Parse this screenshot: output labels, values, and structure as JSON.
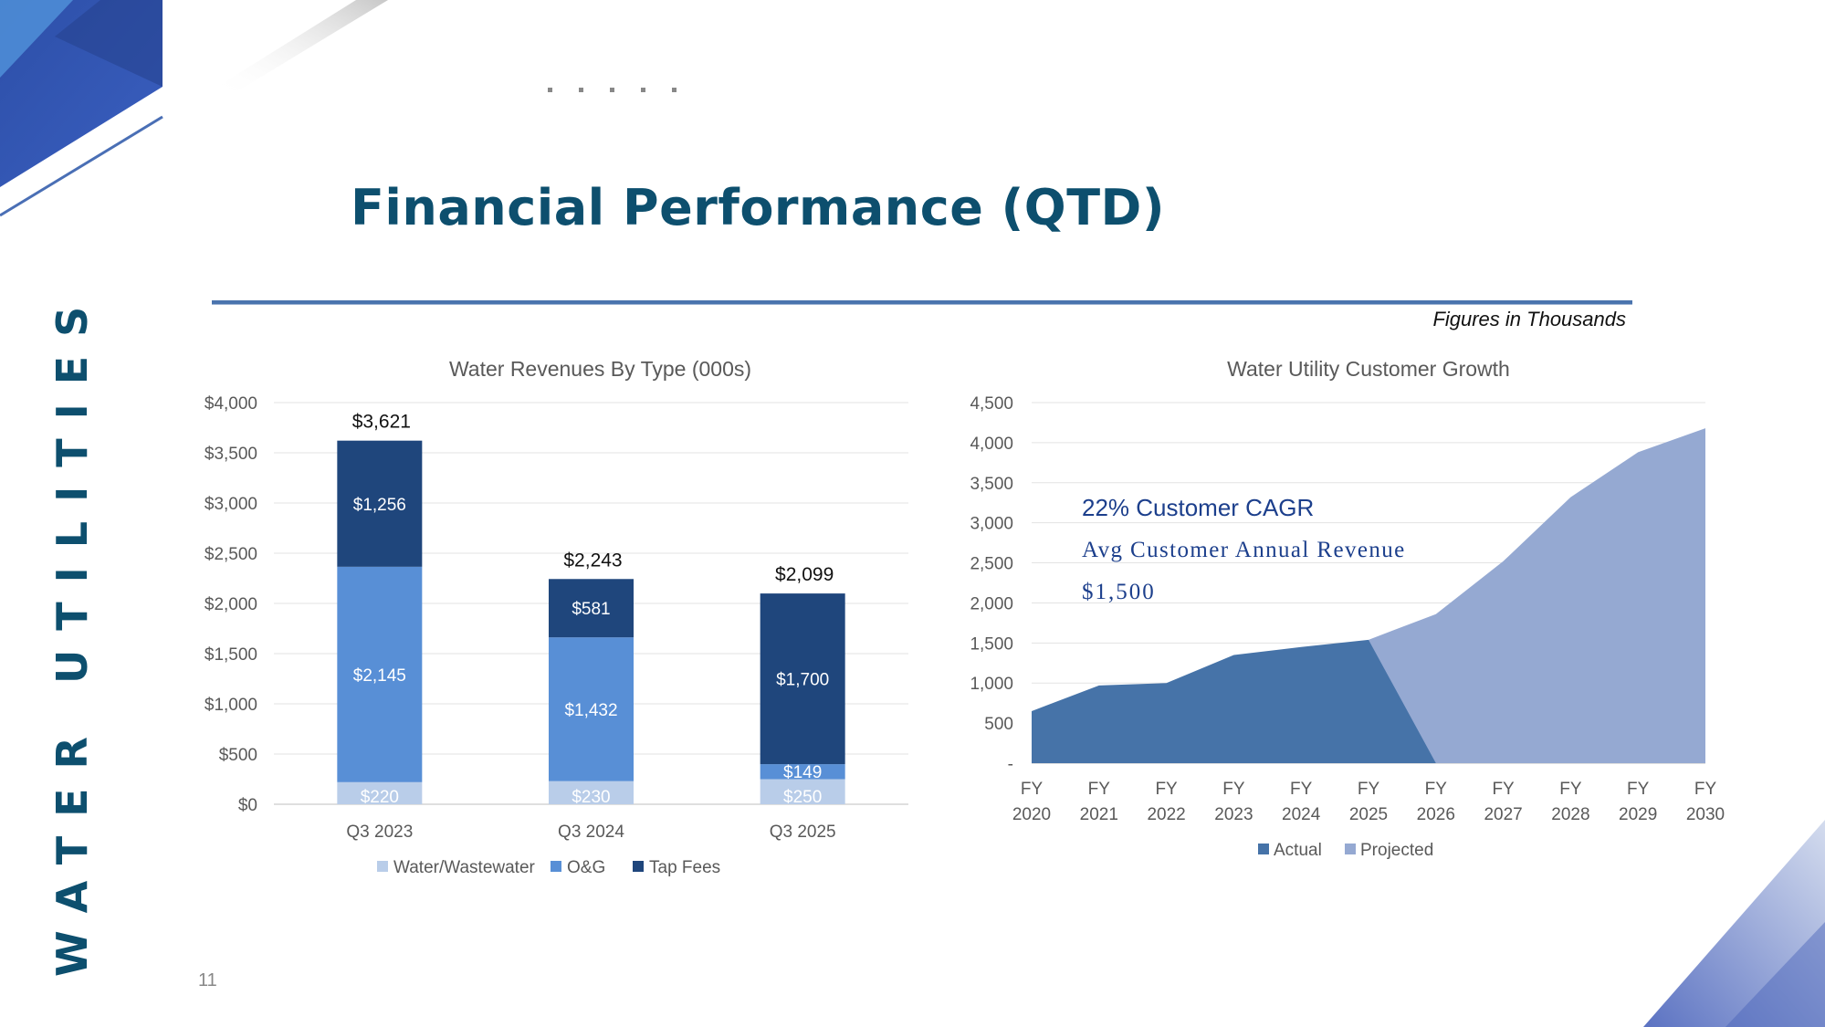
{
  "page": {
    "title": "Financial Performance (QTD)",
    "side_label": "WATER UTILITIES",
    "figures_note": "Figures in Thousands",
    "page_number": "11"
  },
  "colors": {
    "title": "#0d4f6e",
    "rule": "#4a74ae",
    "water_wastewater": "#b9cde9",
    "og": "#588fd6",
    "tap_fees": "#1f467c",
    "actual": "#4673a8",
    "projected": "#95a9d2",
    "callout": "#1c3f8c"
  },
  "callouts": {
    "cagr": "22% Customer CAGR",
    "avg_revenue_label": "Avg Customer Annual Revenue",
    "avg_revenue_value": "$1,500"
  },
  "chart_data": [
    {
      "type": "bar",
      "stacked": true,
      "title": "Water Revenues By Type (000s)",
      "categories": [
        "Q3 2023",
        "Q3 2024",
        "Q3 2025"
      ],
      "series": [
        {
          "name": "Water/Wastewater",
          "values": [
            220,
            230,
            250
          ],
          "labels": [
            "$220",
            "$230",
            "$250"
          ]
        },
        {
          "name": "O&G",
          "values": [
            2145,
            1432,
            149
          ],
          "labels": [
            "$2,145",
            "$1,432",
            "$149"
          ]
        },
        {
          "name": "Tap Fees",
          "values": [
            1256,
            581,
            1700
          ],
          "labels": [
            "$1,256",
            "$581",
            "$1,700"
          ]
        }
      ],
      "totals": [
        3621,
        2243,
        2099
      ],
      "total_labels": [
        "$3,621",
        "$2,243",
        "$2,099"
      ],
      "ylim": [
        0,
        4000
      ],
      "yticks": [
        0,
        500,
        1000,
        1500,
        2000,
        2500,
        3000,
        3500,
        4000
      ],
      "ytick_labels": [
        "$0",
        "$500",
        "$1,000",
        "$1,500",
        "$2,000",
        "$2,500",
        "$3,000",
        "$3,500",
        "$4,000"
      ],
      "xlabel": "",
      "ylabel": "",
      "grid": true,
      "legend": "bottom"
    },
    {
      "type": "area",
      "title": "Water Utility Customer Growth",
      "categories": [
        "FY 2020",
        "FY 2021",
        "FY 2022",
        "FY 2023",
        "FY 2024",
        "FY 2025",
        "FY 2026",
        "FY 2027",
        "FY 2028",
        "FY 2029",
        "FY 2030"
      ],
      "series": [
        {
          "name": "Actual",
          "values": [
            650,
            970,
            1000,
            1350,
            1450,
            1540,
            0,
            null,
            null,
            null,
            null
          ]
        },
        {
          "name": "Projected",
          "values": [
            null,
            null,
            null,
            null,
            null,
            1540,
            1860,
            2520,
            3320,
            3880,
            4180
          ]
        }
      ],
      "ylim": [
        0,
        4500
      ],
      "yticks": [
        0,
        500,
        1000,
        1500,
        2000,
        2500,
        3000,
        3500,
        4000,
        4500
      ],
      "ytick_labels": [
        "-",
        "500",
        "1,000",
        "1,500",
        "2,000",
        "2,500",
        "3,000",
        "3,500",
        "4,000",
        "4,500"
      ],
      "xlabel": "",
      "ylabel": "",
      "grid": true,
      "legend": "bottom"
    }
  ]
}
